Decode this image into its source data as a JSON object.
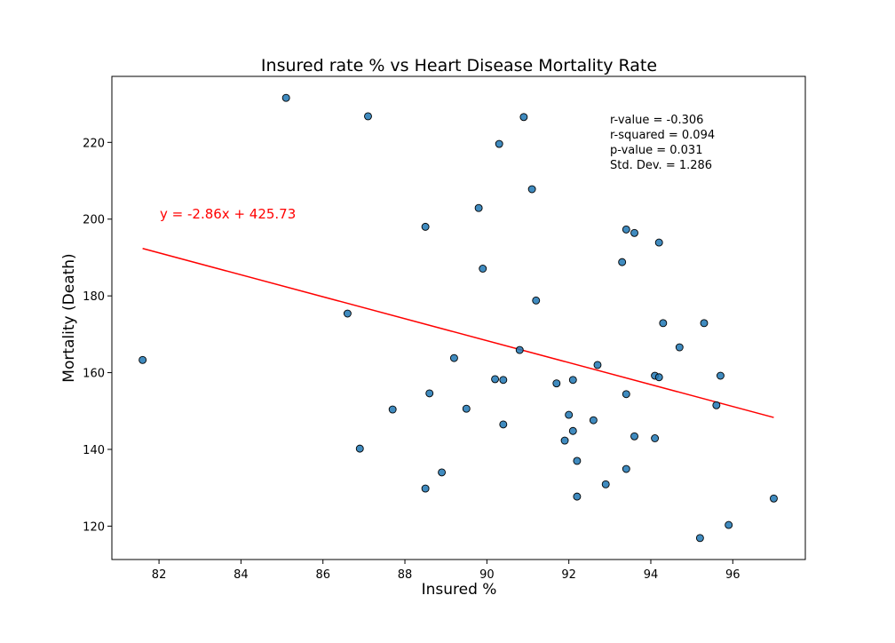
{
  "chart_data": {
    "type": "scatter",
    "title": "Insured rate % vs Heart Disease Mortality Rate",
    "xlabel": "Insured %",
    "ylabel": "Mortality (Death)",
    "xlim": [
      80.85,
      97.77
    ],
    "ylim": [
      111.3,
      237.2
    ],
    "xticks": [
      82,
      84,
      86,
      88,
      90,
      92,
      94,
      96
    ],
    "yticks": [
      120,
      140,
      160,
      180,
      200,
      220
    ],
    "grid": false,
    "point_color": "#1f77b4",
    "point_edge_color": "#000000",
    "line_color": "#ff0000",
    "regression": {
      "slope": -2.86,
      "intercept": 425.73,
      "x_range": [
        81.6,
        97.0
      ],
      "equation_label": "y = -2.86x + 425.73"
    },
    "stats_lines": [
      "r-value = -0.306",
      "r-squared = 0.094",
      "p-value = 0.031",
      "Std. Dev. = 1.286"
    ],
    "series": [
      {
        "x": [
          85.1,
          87.1,
          90.9,
          90.3,
          91.1,
          89.8,
          88.5,
          89.9,
          93.4,
          93.6,
          94.2,
          93.3,
          91.2,
          86.6,
          94.3,
          95.3,
          94.7,
          90.8,
          81.6,
          89.2,
          92.7,
          94.1,
          94.2,
          95.7,
          90.2,
          90.4,
          92.1,
          91.7,
          88.6,
          93.4,
          95.6,
          87.7,
          89.5,
          92.0,
          92.6,
          90.4,
          92.1,
          93.6,
          94.1,
          91.9,
          86.9,
          92.2,
          93.4,
          88.9,
          92.9,
          88.5,
          92.2,
          97.0,
          95.9,
          95.2
        ],
        "y": [
          231.6,
          226.8,
          226.6,
          219.6,
          207.8,
          202.9,
          198.0,
          187.1,
          197.3,
          196.4,
          193.9,
          188.8,
          178.8,
          175.4,
          172.9,
          172.9,
          166.6,
          165.9,
          163.3,
          163.8,
          162.0,
          159.2,
          158.8,
          159.2,
          158.3,
          158.1,
          158.1,
          157.2,
          154.6,
          154.4,
          151.5,
          150.4,
          150.6,
          149.0,
          147.6,
          146.5,
          144.8,
          143.4,
          142.9,
          142.3,
          140.2,
          137.0,
          134.9,
          134.0,
          130.9,
          129.8,
          127.7,
          127.2,
          120.3,
          116.9
        ]
      }
    ]
  }
}
